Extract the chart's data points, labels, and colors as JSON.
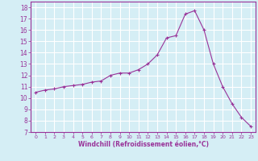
{
  "x": [
    0,
    1,
    2,
    3,
    4,
    5,
    6,
    7,
    8,
    9,
    10,
    11,
    12,
    13,
    14,
    15,
    16,
    17,
    18,
    19,
    20,
    21,
    22,
    23
  ],
  "y": [
    10.5,
    10.7,
    10.8,
    11.0,
    11.1,
    11.2,
    11.4,
    11.5,
    12.0,
    12.2,
    12.2,
    12.5,
    13.0,
    13.8,
    15.3,
    15.5,
    17.4,
    17.7,
    16.0,
    13.0,
    11.0,
    9.5,
    8.3,
    7.5
  ],
  "line_color": "#993399",
  "marker": "+",
  "marker_size": 3,
  "bg_color": "#d5eef5",
  "grid_color": "#ffffff",
  "xlabel": "Windchill (Refroidissement éolien,°C)",
  "xlabel_color": "#993399",
  "tick_color": "#993399",
  "ylim": [
    7,
    18.5
  ],
  "xlim": [
    -0.5,
    23.5
  ],
  "yticks": [
    7,
    8,
    9,
    10,
    11,
    12,
    13,
    14,
    15,
    16,
    17,
    18
  ],
  "xticks": [
    0,
    1,
    2,
    3,
    4,
    5,
    6,
    7,
    8,
    9,
    10,
    11,
    12,
    13,
    14,
    15,
    16,
    17,
    18,
    19,
    20,
    21,
    22,
    23
  ]
}
